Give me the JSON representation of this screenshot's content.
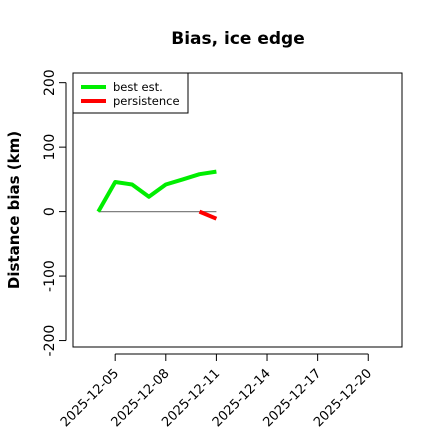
{
  "chart_data": {
    "type": "line",
    "title": "Bias, ice edge",
    "xlabel": "",
    "ylabel": "Distance bias (km)",
    "ylim": [
      -210,
      215
    ],
    "yticks": [
      -200,
      -100,
      0,
      100,
      200
    ],
    "xlim": [
      "2025-12-02T12:00",
      "2025-12-22T00:00"
    ],
    "xticks": [
      "2025-12-05",
      "2025-12-08",
      "2025-12-11",
      "2025-12-14",
      "2025-12-17",
      "2025-12-20"
    ],
    "reference_line": {
      "y": 0,
      "x_range": [
        "2025-12-04",
        "2025-12-11"
      ],
      "color": "#808080"
    },
    "legend": {
      "position": "top-left"
    },
    "series": [
      {
        "name": "best est.",
        "color": "#00ee00",
        "x": [
          "2025-12-04",
          "2025-12-05",
          "2025-12-06",
          "2025-12-07",
          "2025-12-08",
          "2025-12-09",
          "2025-12-10",
          "2025-12-11"
        ],
        "values": [
          0,
          46,
          42,
          23,
          42,
          50,
          58,
          62
        ]
      },
      {
        "name": "persistence",
        "color": "#ff0000",
        "x": [
          "2025-12-10",
          "2025-12-11"
        ],
        "values": [
          0,
          -11
        ]
      }
    ]
  }
}
